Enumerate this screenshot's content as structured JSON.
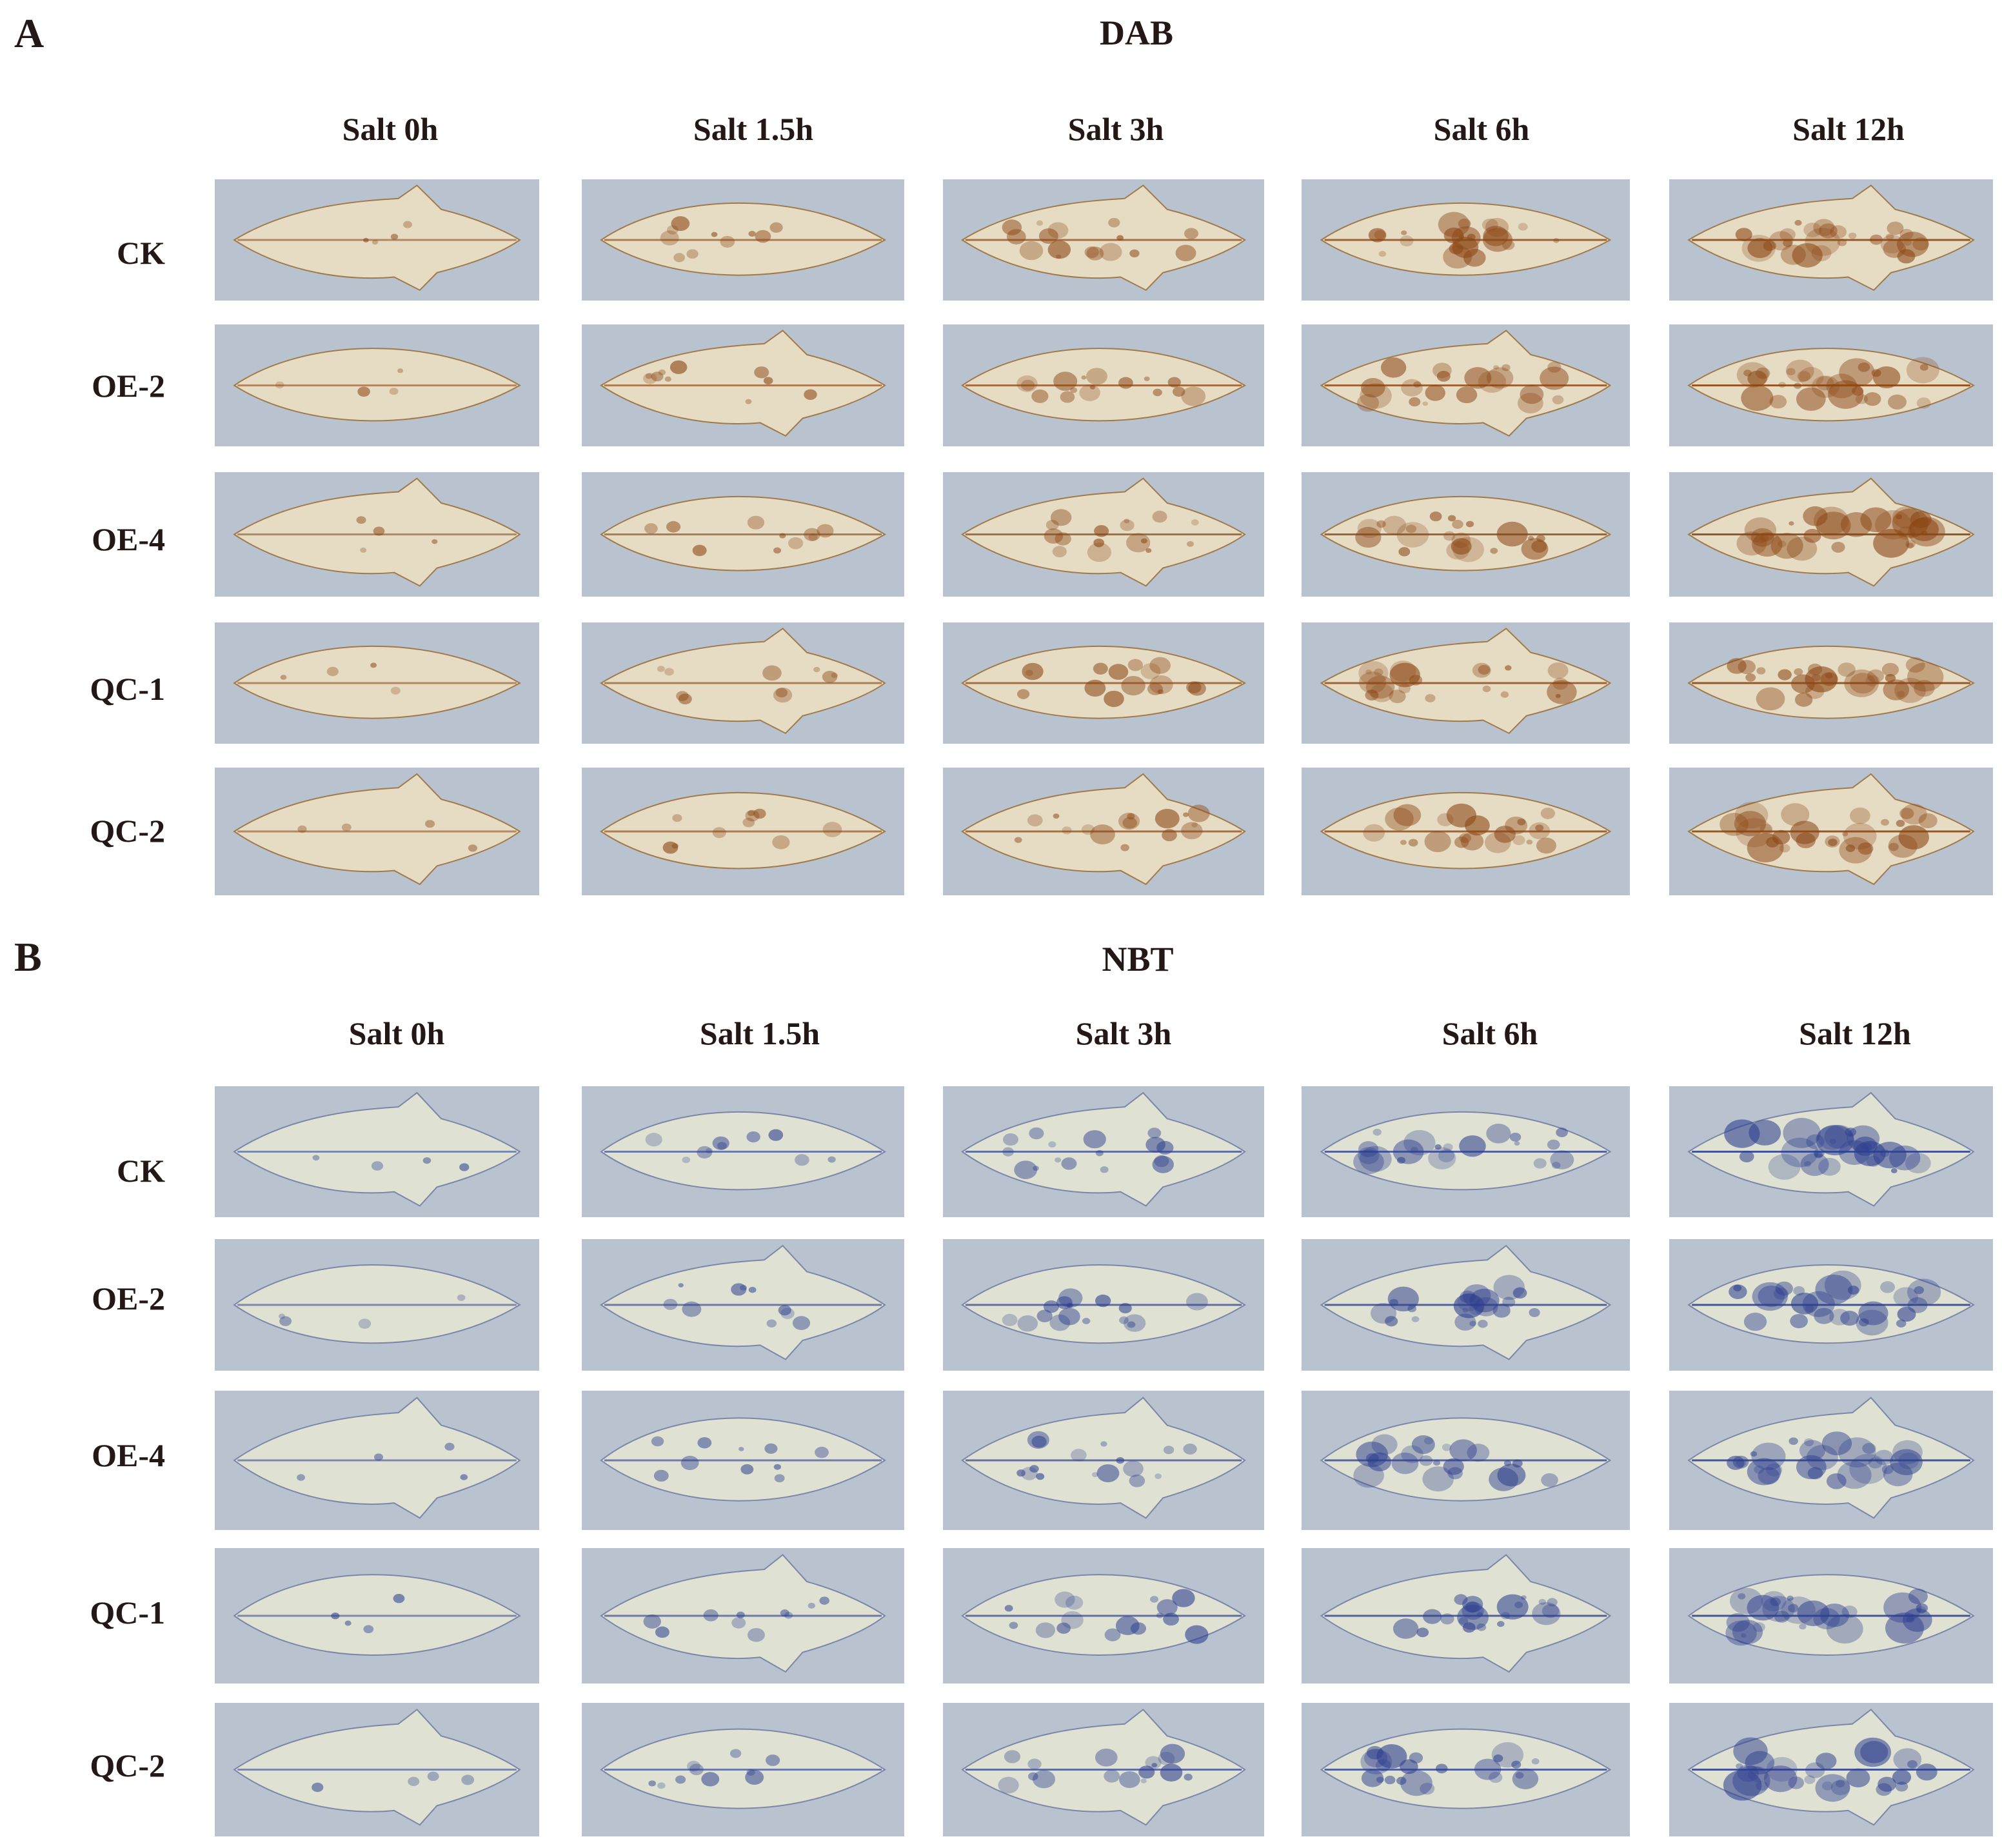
{
  "panels": [
    {
      "letter": "A",
      "title": "DAB",
      "columns": [
        "Salt 0h",
        "Salt 1.5h",
        "Salt 3h",
        "Salt 6h",
        "Salt 12h"
      ],
      "rows": [
        "CK",
        "OE-2",
        "OE-4",
        "QC-1",
        "QC-2"
      ],
      "stain_color": "#8b4513",
      "background_color": "#b9c3cf"
    },
    {
      "letter": "B",
      "title": "NBT",
      "columns": [
        "Salt 0h",
        "Salt 1.5h",
        "Salt 3h",
        "Salt 6h",
        "Salt 12h"
      ],
      "rows": [
        "CK",
        "OE-2",
        "OE-4",
        "QC-1",
        "QC-2"
      ],
      "stain_color": "#2e3f8f",
      "background_color": "#b9c3cf"
    }
  ]
}
